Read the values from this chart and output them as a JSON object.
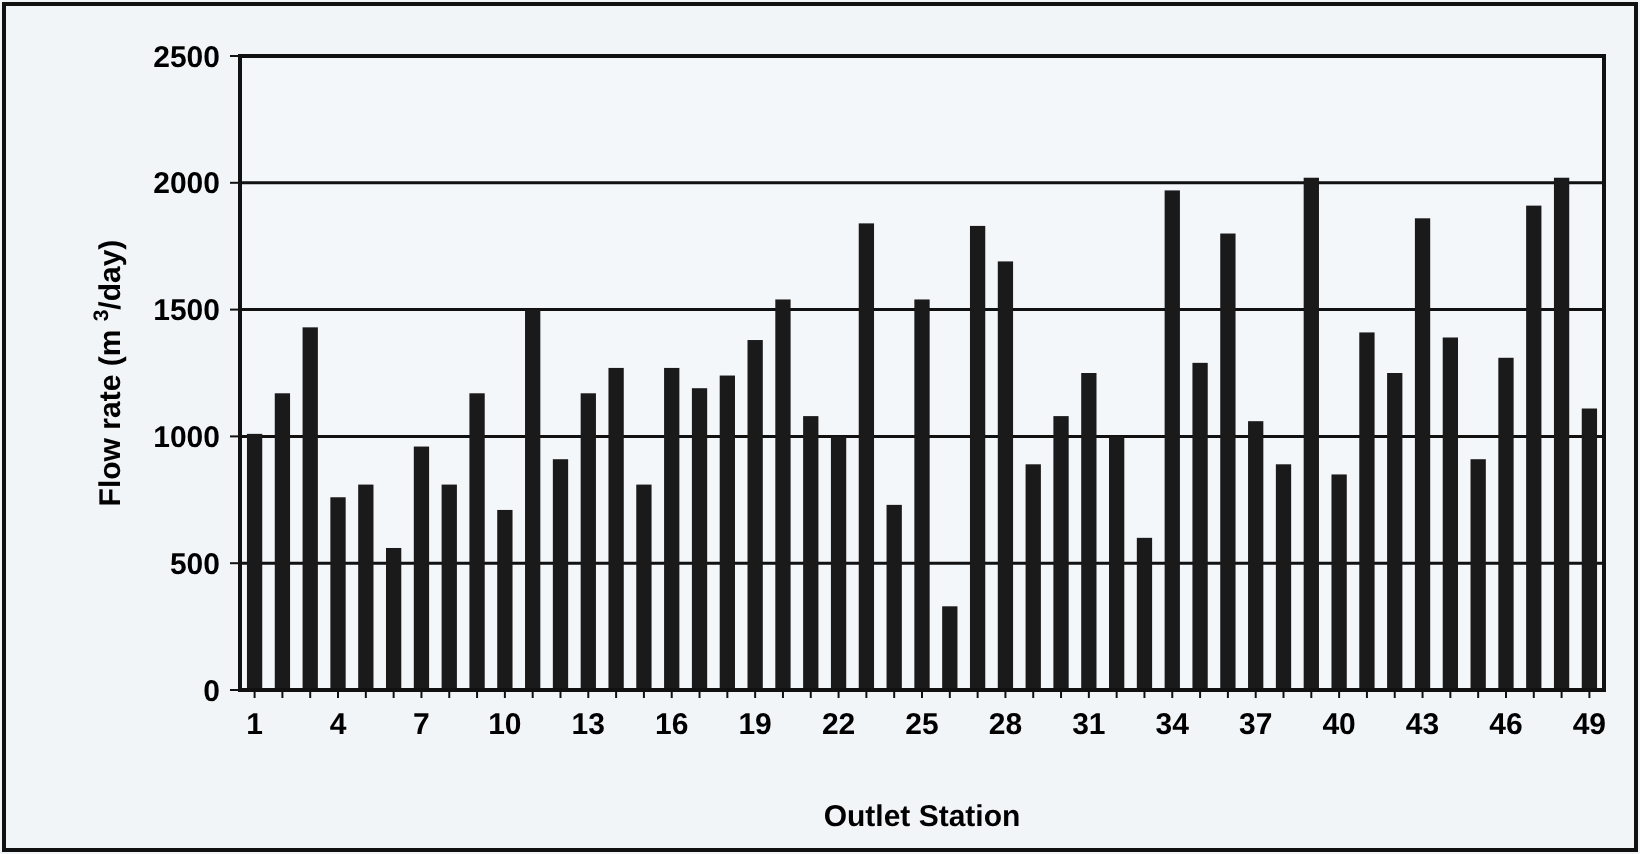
{
  "chart_data": {
    "type": "bar",
    "xlabel": "Outlet Station",
    "ylabel": "Flow rate (m $^{3}$/day)",
    "categories": [
      "1",
      null,
      null,
      "4",
      null,
      null,
      "7",
      null,
      null,
      "10",
      null,
      null,
      "13",
      null,
      null,
      "16",
      null,
      null,
      "19",
      null,
      null,
      "22",
      null,
      null,
      "25",
      null,
      null,
      "28",
      null,
      null,
      "31",
      null,
      null,
      "34",
      null,
      null,
      "37",
      null,
      null,
      "40",
      null,
      null,
      "43",
      null,
      null,
      "46",
      null,
      null,
      "49"
    ],
    "values": [
      1010,
      1170,
      1430,
      760,
      810,
      560,
      960,
      810,
      1170,
      710,
      1500,
      910,
      1170,
      1270,
      810,
      1270,
      1190,
      1240,
      1380,
      1540,
      1080,
      1000,
      1840,
      730,
      1540,
      330,
      1830,
      1690,
      890,
      1080,
      1250,
      1000,
      600,
      1970,
      1290,
      1800,
      1060,
      890,
      2020,
      850,
      1410,
      1250,
      1860,
      1390,
      910,
      1310,
      1910,
      2020,
      1110
    ],
    "color": "#1a1a1a",
    "ylim": [
      0,
      2500
    ],
    "yticks": [
      0,
      500,
      1000,
      1500,
      2000,
      2500
    ],
    "grid": "y"
  }
}
